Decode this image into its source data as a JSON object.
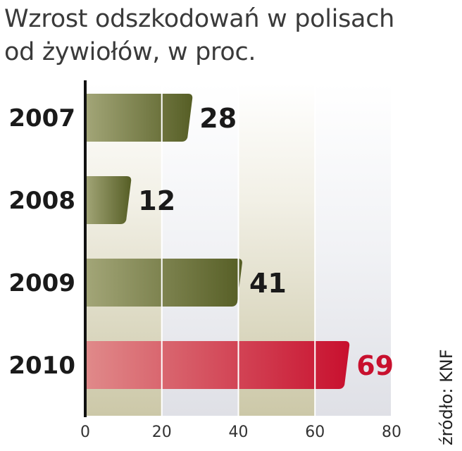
{
  "title": {
    "line1": "Wzrost odszkodowań w polisach",
    "line2": "od żywiołów, w proc."
  },
  "source": "źródło: KNF",
  "colors": {
    "bar_default_dark": "#565e25",
    "bar_default_light": "#a3a678",
    "bar_highlight_dark": "#c8102e",
    "bar_highlight_light": "#e08a8a",
    "label_default": "#1a1a1a",
    "label_highlight": "#c8102e",
    "band_color": "#ccc8a8"
  },
  "chart_data": {
    "type": "bar",
    "orientation": "horizontal",
    "title": "Wzrost odszkodowań w polisach od żywiołów, w proc.",
    "categories": [
      "2007",
      "2008",
      "2009",
      "2010"
    ],
    "values": [
      28,
      12,
      41,
      69
    ],
    "highlight_index": 3,
    "xlim": [
      0,
      80
    ],
    "xticks": [
      "0",
      "20",
      "40",
      "60",
      "80"
    ],
    "grid": true
  }
}
